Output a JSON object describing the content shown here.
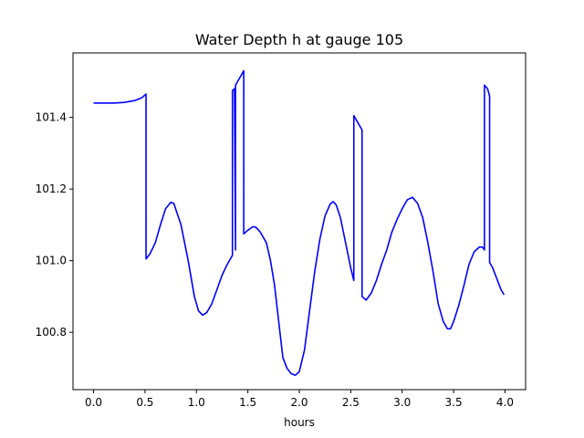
{
  "chart_data": {
    "type": "line",
    "title": "Water Depth h at gauge 105",
    "xlabel": "hours",
    "ylabel": "",
    "xlim": [
      -0.2,
      4.2
    ],
    "ylim": [
      100.64,
      101.58
    ],
    "x_ticks": [
      0.0,
      0.5,
      1.0,
      1.5,
      2.0,
      2.5,
      3.0,
      3.5,
      4.0
    ],
    "x_tick_labels": [
      "0.0",
      "0.5",
      "1.0",
      "1.5",
      "2.0",
      "2.5",
      "3.0",
      "3.5",
      "4.0"
    ],
    "y_ticks": [
      100.8,
      101.0,
      101.2,
      101.4
    ],
    "y_tick_labels": [
      "100.8",
      "101.0",
      "101.2",
      "101.4"
    ],
    "grid": false,
    "legend": "none",
    "color": "#0000ff",
    "series": [
      {
        "values": [
          [
            0.0,
            101.44
          ],
          [
            0.1,
            101.44
          ],
          [
            0.2,
            101.44
          ],
          [
            0.3,
            101.442
          ],
          [
            0.4,
            101.447
          ],
          [
            0.47,
            101.455
          ],
          [
            0.51,
            101.465
          ],
          [
            0.51,
            101.005
          ],
          [
            0.55,
            101.02
          ],
          [
            0.6,
            101.05
          ],
          [
            0.65,
            101.1
          ],
          [
            0.7,
            101.145
          ],
          [
            0.75,
            101.163
          ],
          [
            0.78,
            101.16
          ],
          [
            0.85,
            101.1
          ],
          [
            0.92,
            101.0
          ],
          [
            0.98,
            100.9
          ],
          [
            1.02,
            100.86
          ],
          [
            1.06,
            100.848
          ],
          [
            1.1,
            100.855
          ],
          [
            1.15,
            100.88
          ],
          [
            1.2,
            100.92
          ],
          [
            1.25,
            100.96
          ],
          [
            1.3,
            100.99
          ],
          [
            1.35,
            101.015
          ],
          [
            1.35,
            101.475
          ],
          [
            1.37,
            101.48
          ],
          [
            1.38,
            101.03
          ],
          [
            1.38,
            101.49
          ],
          [
            1.4,
            101.5
          ],
          [
            1.42,
            101.51
          ],
          [
            1.44,
            101.52
          ],
          [
            1.46,
            101.53
          ],
          [
            1.46,
            101.075
          ],
          [
            1.5,
            101.085
          ],
          [
            1.55,
            101.095
          ],
          [
            1.58,
            101.093
          ],
          [
            1.62,
            101.08
          ],
          [
            1.68,
            101.05
          ],
          [
            1.72,
            101.0
          ],
          [
            1.76,
            100.93
          ],
          [
            1.8,
            100.83
          ],
          [
            1.84,
            100.73
          ],
          [
            1.88,
            100.7
          ],
          [
            1.92,
            100.685
          ],
          [
            1.96,
            100.68
          ],
          [
            2.0,
            100.69
          ],
          [
            2.05,
            100.75
          ],
          [
            2.1,
            100.86
          ],
          [
            2.15,
            100.97
          ],
          [
            2.2,
            101.06
          ],
          [
            2.25,
            101.125
          ],
          [
            2.3,
            101.158
          ],
          [
            2.33,
            101.165
          ],
          [
            2.36,
            101.155
          ],
          [
            2.4,
            101.12
          ],
          [
            2.45,
            101.05
          ],
          [
            2.5,
            100.98
          ],
          [
            2.53,
            100.945
          ],
          [
            2.53,
            101.405
          ],
          [
            2.61,
            101.365
          ],
          [
            2.61,
            100.9
          ],
          [
            2.65,
            100.89
          ],
          [
            2.7,
            100.91
          ],
          [
            2.75,
            100.945
          ],
          [
            2.8,
            100.99
          ],
          [
            2.85,
            101.03
          ],
          [
            2.9,
            101.08
          ],
          [
            2.95,
            101.115
          ],
          [
            3.0,
            101.145
          ],
          [
            3.05,
            101.17
          ],
          [
            3.1,
            101.177
          ],
          [
            3.15,
            101.16
          ],
          [
            3.2,
            101.12
          ],
          [
            3.25,
            101.05
          ],
          [
            3.3,
            100.97
          ],
          [
            3.35,
            100.88
          ],
          [
            3.4,
            100.83
          ],
          [
            3.44,
            100.81
          ],
          [
            3.47,
            100.81
          ],
          [
            3.5,
            100.83
          ],
          [
            3.55,
            100.875
          ],
          [
            3.6,
            100.93
          ],
          [
            3.65,
            100.99
          ],
          [
            3.7,
            101.025
          ],
          [
            3.75,
            101.038
          ],
          [
            3.78,
            101.038
          ],
          [
            3.8,
            101.03
          ],
          [
            3.8,
            101.49
          ],
          [
            3.83,
            101.48
          ],
          [
            3.85,
            101.46
          ],
          [
            3.85,
            100.995
          ],
          [
            3.88,
            100.98
          ],
          [
            3.92,
            100.95
          ],
          [
            3.96,
            100.92
          ],
          [
            3.99,
            100.905
          ]
        ]
      }
    ]
  }
}
